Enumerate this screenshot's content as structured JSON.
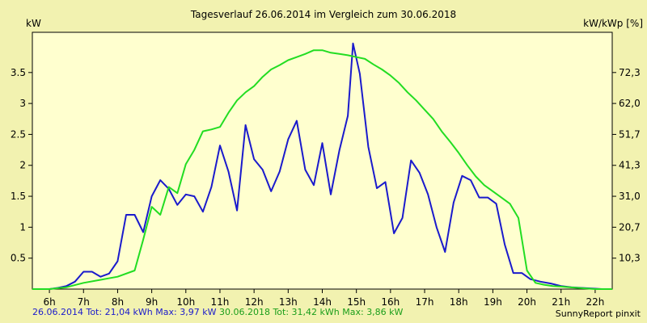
{
  "chart_data": {
    "type": "line",
    "title": "Tagesverlauf 26.06.2014 im Vergleich zum 30.06.2018",
    "ylabel_left": "kW",
    "ylabel_right": "kW/kWp [%]",
    "xlim": [
      5.5,
      22.5
    ],
    "ylim": [
      0,
      4.15
    ],
    "x_ticks": [
      6,
      7,
      8,
      9,
      10,
      11,
      12,
      13,
      14,
      15,
      16,
      17,
      18,
      19,
      20,
      21,
      22
    ],
    "x_tick_labels": [
      "6h",
      "7h",
      "8h",
      "9h",
      "10h",
      "11h",
      "12h",
      "13h",
      "14h",
      "15h",
      "16h",
      "17h",
      "18h",
      "19h",
      "20h",
      "21h",
      "22h"
    ],
    "y_left_ticks": [
      0.5,
      1,
      1.5,
      2,
      2.5,
      3,
      3.5
    ],
    "y_left_tick_labels": [
      "0.5",
      "1",
      "1.5",
      "2",
      "2.5",
      "3",
      "3.5"
    ],
    "y_right_ticks": [
      {
        "value": 0.5,
        "label": "10,3"
      },
      {
        "value": 1.0,
        "label": "20,7"
      },
      {
        "value": 1.5,
        "label": "31,0"
      },
      {
        "value": 2.0,
        "label": "41,3"
      },
      {
        "value": 2.5,
        "label": "51,7"
      },
      {
        "value": 3.0,
        "label": "62,0"
      },
      {
        "value": 3.5,
        "label": "72,3"
      }
    ],
    "grid": false,
    "series": [
      {
        "name": "26.06.2014",
        "color": "#1a1acc",
        "x": [
          5.5,
          6.0,
          6.25,
          6.5,
          6.75,
          7.0,
          7.25,
          7.5,
          7.75,
          8.0,
          8.25,
          8.5,
          8.75,
          9.0,
          9.25,
          9.5,
          9.75,
          10.0,
          10.25,
          10.5,
          10.75,
          11.0,
          11.25,
          11.5,
          11.75,
          12.0,
          12.25,
          12.5,
          12.75,
          13.0,
          13.25,
          13.5,
          13.75,
          14.0,
          14.25,
          14.5,
          14.75,
          14.9,
          15.1,
          15.35,
          15.6,
          15.85,
          16.1,
          16.35,
          16.6,
          16.85,
          17.1,
          17.35,
          17.6,
          17.85,
          18.1,
          18.35,
          18.6,
          18.85,
          19.1,
          19.35,
          19.6,
          19.85,
          20.1,
          20.4,
          20.7,
          21.0,
          21.3,
          21.6,
          21.9,
          22.2,
          22.5
        ],
        "values": [
          0.0,
          0.0,
          0.02,
          0.05,
          0.12,
          0.28,
          0.28,
          0.2,
          0.25,
          0.45,
          1.2,
          1.2,
          0.92,
          1.5,
          1.76,
          1.62,
          1.36,
          1.53,
          1.5,
          1.25,
          1.65,
          2.32,
          1.9,
          1.27,
          2.65,
          2.1,
          1.93,
          1.58,
          1.9,
          2.42,
          2.72,
          1.93,
          1.68,
          2.36,
          1.53,
          2.24,
          2.8,
          3.97,
          3.48,
          2.3,
          1.63,
          1.73,
          0.9,
          1.15,
          2.08,
          1.88,
          1.53,
          1.0,
          0.6,
          1.4,
          1.83,
          1.76,
          1.48,
          1.48,
          1.38,
          0.72,
          0.26,
          0.26,
          0.16,
          0.12,
          0.09,
          0.05,
          0.03,
          0.02,
          0.01,
          0.0,
          0.0
        ]
      },
      {
        "name": "30.06.2018",
        "color": "#22dd22",
        "x": [
          5.5,
          6.0,
          6.5,
          7.0,
          7.5,
          8.0,
          8.5,
          8.75,
          9.0,
          9.25,
          9.5,
          9.75,
          10.0,
          10.25,
          10.5,
          10.75,
          11.0,
          11.25,
          11.5,
          11.75,
          12.0,
          12.25,
          12.5,
          12.75,
          13.0,
          13.25,
          13.5,
          13.75,
          14.0,
          14.25,
          14.5,
          14.75,
          15.0,
          15.25,
          15.5,
          15.75,
          16.0,
          16.25,
          16.5,
          16.75,
          17.0,
          17.25,
          17.5,
          17.75,
          18.0,
          18.25,
          18.5,
          18.75,
          19.0,
          19.25,
          19.5,
          19.75,
          20.0,
          20.25,
          20.5,
          20.75,
          21.0,
          21.25,
          21.5,
          21.75,
          22.0,
          22.25,
          22.5
        ],
        "values": [
          0.0,
          0.0,
          0.03,
          0.1,
          0.15,
          0.2,
          0.3,
          0.8,
          1.33,
          1.2,
          1.65,
          1.55,
          2.02,
          2.25,
          2.55,
          2.58,
          2.62,
          2.85,
          3.05,
          3.18,
          3.28,
          3.43,
          3.55,
          3.62,
          3.7,
          3.75,
          3.8,
          3.86,
          3.86,
          3.82,
          3.8,
          3.78,
          3.75,
          3.72,
          3.63,
          3.55,
          3.45,
          3.33,
          3.18,
          3.05,
          2.9,
          2.75,
          2.55,
          2.38,
          2.2,
          2.0,
          1.82,
          1.68,
          1.58,
          1.48,
          1.38,
          1.15,
          0.3,
          0.1,
          0.07,
          0.05,
          0.04,
          0.03,
          0.02,
          0.01,
          0.0,
          0.0,
          0.0
        ]
      }
    ]
  },
  "footer": {
    "series1_text": "26.06.2014 Tot: 21,04 kWh Max: 3,97 kW",
    "series2_text": "30.06.2018 Tot: 31,42 kWh Max: 3,86 kW",
    "brand": "SunnyReport pinxit"
  }
}
